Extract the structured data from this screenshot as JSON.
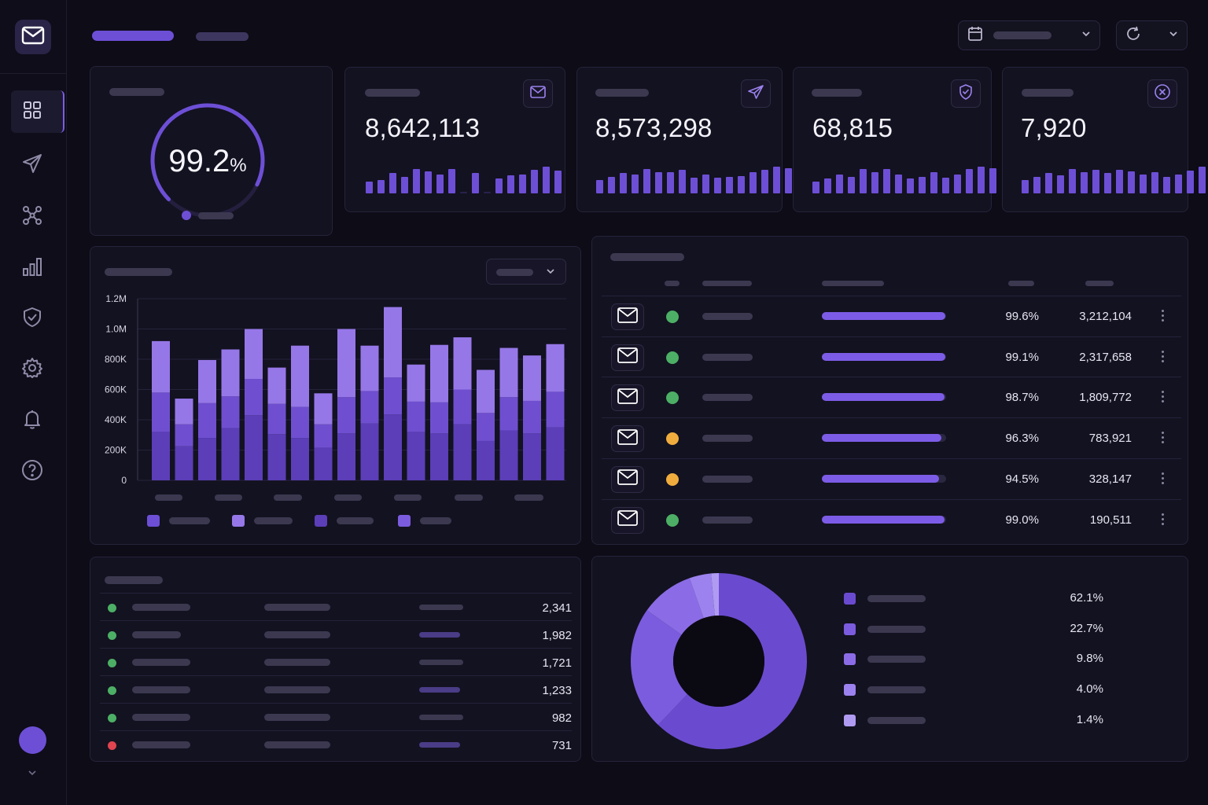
{
  "sidebar": {
    "logo_icon": "mail-icon",
    "items": [
      {
        "icon": "grid-icon",
        "active": true
      },
      {
        "icon": "send-icon",
        "active": false
      },
      {
        "icon": "network-icon",
        "active": false
      },
      {
        "icon": "bar-chart-icon",
        "active": false
      },
      {
        "icon": "shield-check-icon",
        "active": false
      },
      {
        "icon": "gear-icon",
        "active": false
      },
      {
        "icon": "bell-icon",
        "active": false
      },
      {
        "icon": "help-icon",
        "active": false
      }
    ]
  },
  "header": {
    "date_icon": "calendar-icon",
    "refresh_icon": "refresh-icon"
  },
  "gauge": {
    "value": "99.2",
    "unit": "%",
    "fraction": 0.75
  },
  "kpis": [
    {
      "value": "8,642,113",
      "icon": "mail-icon",
      "spark": [
        0.45,
        0.5,
        0.75,
        0.62,
        0.9,
        0.82,
        0.7,
        0.9,
        0.0,
        0.75,
        0.0,
        0.55,
        0.68,
        0.72,
        0.88,
        1.0,
        0.85
      ]
    },
    {
      "value": "8,573,298",
      "icon": "send-icon",
      "spark": [
        0.5,
        0.62,
        0.75,
        0.7,
        0.92,
        0.78,
        0.8,
        0.88,
        0.6,
        0.7,
        0.6,
        0.62,
        0.65,
        0.8,
        0.88,
        1.0,
        0.95
      ]
    },
    {
      "value": "68,815",
      "icon": "shield-check-icon",
      "spark": [
        0.45,
        0.55,
        0.7,
        0.62,
        0.9,
        0.78,
        0.92,
        0.7,
        0.55,
        0.62,
        0.78,
        0.6,
        0.7,
        0.9,
        1.0,
        0.95
      ]
    },
    {
      "value": "7,920",
      "icon": "close-circle-icon",
      "spark": [
        0.5,
        0.62,
        0.75,
        0.68,
        0.9,
        0.8,
        0.88,
        0.75,
        0.88,
        0.82,
        0.7,
        0.8,
        0.62,
        0.72,
        0.85,
        1.0,
        0.92
      ]
    }
  ],
  "chart_data": {
    "type": "bar",
    "stacked": true,
    "y_ticks": [
      "1.2M",
      "1.0M",
      "800K",
      "600K",
      "400K",
      "200K",
      "0"
    ],
    "ylim": [
      0,
      1200000
    ],
    "series": [
      {
        "color": "#5b3eb8",
        "values": [
          320000,
          225000,
          280000,
          345000,
          430000,
          305000,
          280000,
          215000,
          310000,
          375000,
          435000,
          320000,
          310000,
          370000,
          260000,
          330000,
          310000,
          350000
        ]
      },
      {
        "color": "#6f4fd0",
        "values": [
          260000,
          145000,
          230000,
          210000,
          240000,
          200000,
          205000,
          155000,
          240000,
          215000,
          245000,
          200000,
          205000,
          230000,
          185000,
          220000,
          215000,
          235000
        ]
      },
      {
        "color": "#9677e8",
        "values": [
          340000,
          170000,
          285000,
          310000,
          330000,
          240000,
          405000,
          205000,
          450000,
          300000,
          465000,
          245000,
          380000,
          345000,
          285000,
          325000,
          300000,
          315000
        ]
      }
    ],
    "grid": true
  },
  "streams": [
    {
      "status_color": "#4caf65",
      "progress": 0.996,
      "rate": "99.6%",
      "count": "3,212,104"
    },
    {
      "status_color": "#4caf65",
      "progress": 0.991,
      "rate": "99.1%",
      "count": "2,317,658"
    },
    {
      "status_color": "#4caf65",
      "progress": 0.987,
      "rate": "98.7%",
      "count": "1,809,772"
    },
    {
      "status_color": "#f0ad3e",
      "progress": 0.963,
      "rate": "96.3%",
      "count": "783,921"
    },
    {
      "status_color": "#f0ad3e",
      "progress": 0.945,
      "rate": "94.5%",
      "count": "328,147"
    },
    {
      "status_color": "#4caf65",
      "progress": 0.99,
      "rate": "99.0%",
      "count": "190,511"
    }
  ],
  "list_rows": [
    {
      "status_color": "#4caf65",
      "value": "2,341"
    },
    {
      "status_color": "#4caf65",
      "value": "1,982"
    },
    {
      "status_color": "#4caf65",
      "value": "1,721"
    },
    {
      "status_color": "#4caf65",
      "value": "1,233"
    },
    {
      "status_color": "#4caf65",
      "value": "982"
    },
    {
      "status_color": "#e0454f",
      "value": "731"
    }
  ],
  "donut": [
    {
      "pct": "62.1%",
      "value": 62.1,
      "color": "#6a4bcf"
    },
    {
      "pct": "22.7%",
      "value": 22.7,
      "color": "#7b5cde"
    },
    {
      "pct": "9.8%",
      "value": 9.8,
      "color": "#8b6ce6"
    },
    {
      "pct": "4.0%",
      "value": 4.0,
      "color": "#9c82ee"
    },
    {
      "pct": "1.4%",
      "value": 1.4,
      "color": "#b09bf3"
    }
  ]
}
